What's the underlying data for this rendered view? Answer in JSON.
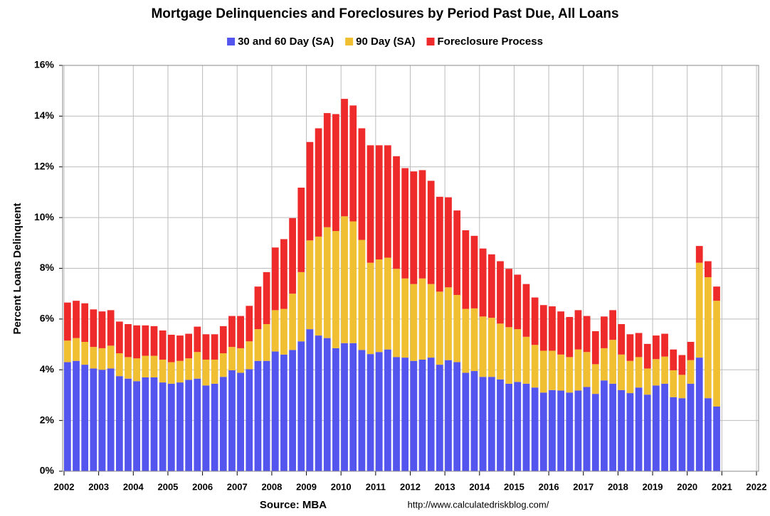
{
  "chart_data": {
    "type": "stacked_bar",
    "title": "Mortgage Delinquencies and Foreclosures by Period Past Due, All Loans",
    "y_label": "Percent Loans Delinquent",
    "source": "Source: MBA",
    "url": "http://www.calculatedriskblog.com/",
    "xlim": [
      2002,
      2022
    ],
    "xticks": [
      2002,
      2003,
      2004,
      2005,
      2006,
      2007,
      2008,
      2009,
      2010,
      2011,
      2012,
      2013,
      2014,
      2015,
      2016,
      2017,
      2018,
      2019,
      2020,
      2021,
      2022
    ],
    "ylim": [
      0,
      16
    ],
    "yticks": [
      {
        "value": 0,
        "label": "0%"
      },
      {
        "value": 2,
        "label": "2%"
      },
      {
        "value": 4,
        "label": "4%"
      },
      {
        "value": 6,
        "label": "6%"
      },
      {
        "value": 8,
        "label": "8%"
      },
      {
        "value": 10,
        "label": "10%"
      },
      {
        "value": 12,
        "label": "12%"
      },
      {
        "value": 14,
        "label": "14%"
      },
      {
        "value": 16,
        "label": "16%"
      }
    ],
    "grid": true,
    "x": [
      2002,
      2002.25,
      2002.5,
      2002.75,
      2003,
      2003.25,
      2003.5,
      2003.75,
      2004,
      2004.25,
      2004.5,
      2004.75,
      2005,
      2005.25,
      2005.5,
      2005.75,
      2006,
      2006.25,
      2006.5,
      2006.75,
      2007,
      2007.25,
      2007.5,
      2007.75,
      2008,
      2008.25,
      2008.5,
      2008.75,
      2009,
      2009.25,
      2009.5,
      2009.75,
      2010,
      2010.25,
      2010.5,
      2010.75,
      2011,
      2011.25,
      2011.5,
      2011.75,
      2012,
      2012.25,
      2012.5,
      2012.75,
      2013,
      2013.25,
      2013.5,
      2013.75,
      2014,
      2014.25,
      2014.5,
      2014.75,
      2015,
      2015.25,
      2015.5,
      2015.75,
      2016,
      2016.25,
      2016.5,
      2016.75,
      2017,
      2017.25,
      2017.5,
      2017.75,
      2018,
      2018.25,
      2018.5,
      2018.75,
      2019,
      2019.25,
      2019.5,
      2019.75,
      2020,
      2020.25,
      2020.5,
      2020.75
    ],
    "series": [
      {
        "name": "30 and 60 Day (SA)",
        "color": "#5454ee",
        "values": [
          4.3,
          4.35,
          4.2,
          4.05,
          4.0,
          4.05,
          3.75,
          3.65,
          3.55,
          3.7,
          3.7,
          3.5,
          3.45,
          3.5,
          3.6,
          3.65,
          3.38,
          3.45,
          3.72,
          3.98,
          3.88,
          4.02,
          4.35,
          4.35,
          4.72,
          4.6,
          4.78,
          5.12,
          5.6,
          5.35,
          5.25,
          4.85,
          5.05,
          5.05,
          4.78,
          4.62,
          4.7,
          4.8,
          4.5,
          4.48,
          4.35,
          4.4,
          4.48,
          4.2,
          4.38,
          4.3,
          3.88,
          3.95,
          3.72,
          3.72,
          3.62,
          3.45,
          3.52,
          3.45,
          3.3,
          3.1,
          3.2,
          3.18,
          3.1,
          3.18,
          3.32,
          3.05,
          3.58,
          3.45,
          3.2,
          3.08,
          3.3,
          3.02,
          3.38,
          3.45,
          2.92,
          2.88,
          3.45,
          4.48,
          2.88,
          2.55
        ]
      },
      {
        "name": "90 Day (SA)",
        "color": "#f0c032",
        "values": [
          0.85,
          0.9,
          0.9,
          0.85,
          0.85,
          0.9,
          0.9,
          0.85,
          0.9,
          0.85,
          0.85,
          0.9,
          0.85,
          0.85,
          0.85,
          1.05,
          1.02,
          0.95,
          0.93,
          0.92,
          0.97,
          1.1,
          1.25,
          1.45,
          1.63,
          1.8,
          2.22,
          2.73,
          3.5,
          3.9,
          4.37,
          4.62,
          5.0,
          4.8,
          4.34,
          3.6,
          3.65,
          3.62,
          3.48,
          3.12,
          3.03,
          3.2,
          2.9,
          2.88,
          2.87,
          2.65,
          2.52,
          2.47,
          2.38,
          2.33,
          2.2,
          2.23,
          2.08,
          1.85,
          1.68,
          1.65,
          1.55,
          1.42,
          1.4,
          1.62,
          1.38,
          1.17,
          1.27,
          1.73,
          1.4,
          1.27,
          1.2,
          1.03,
          1.04,
          1.07,
          1.06,
          0.92,
          0.93,
          3.74,
          4.77,
          4.17
        ]
      },
      {
        "name": "Foreclosure Process",
        "color": "#ee2a2a",
        "values": [
          1.5,
          1.47,
          1.52,
          1.48,
          1.45,
          1.4,
          1.25,
          1.3,
          1.3,
          1.2,
          1.17,
          1.15,
          1.08,
          1.0,
          0.97,
          1.0,
          1.0,
          1.0,
          1.07,
          1.22,
          1.27,
          1.4,
          1.68,
          2.05,
          2.47,
          2.75,
          2.98,
          3.33,
          3.88,
          4.27,
          4.5,
          4.61,
          4.63,
          4.57,
          4.4,
          4.63,
          4.5,
          4.43,
          4.44,
          4.35,
          4.44,
          4.27,
          4.07,
          3.74,
          3.55,
          3.33,
          3.1,
          2.86,
          2.68,
          2.5,
          2.46,
          2.3,
          2.15,
          2.08,
          1.87,
          1.8,
          1.75,
          1.7,
          1.58,
          1.55,
          1.42,
          1.3,
          1.25,
          1.17,
          1.2,
          1.05,
          0.95,
          0.97,
          0.93,
          0.9,
          0.82,
          0.78,
          0.72,
          0.66,
          0.63,
          0.56
        ]
      }
    ]
  }
}
